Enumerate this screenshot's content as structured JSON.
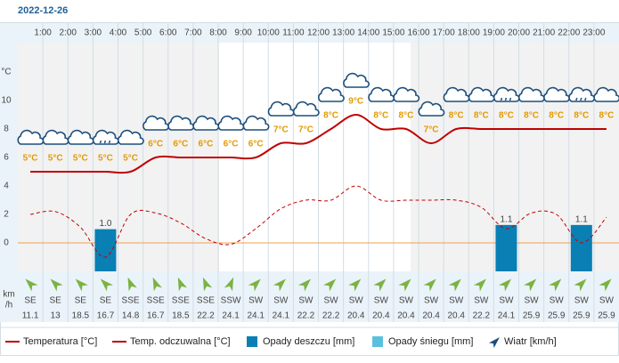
{
  "chart_data": {
    "type": "weather",
    "date": "2022-12-26",
    "hour_labels": [
      "1:00",
      "2:00",
      "3:00",
      "4:00",
      "5:00",
      "6:00",
      "7:00",
      "8:00",
      "9:00",
      "10:00",
      "11:00",
      "12:00",
      "13:00",
      "14:00",
      "15:00",
      "16:00",
      "17:00",
      "18:00",
      "19:00",
      "20:00",
      "21:00",
      "22:00",
      "23:00"
    ],
    "ylabel": "°C",
    "ylim": [
      -2,
      14
    ],
    "yticks": [
      0,
      2,
      4,
      6,
      8,
      10
    ],
    "y2lim": [
      0,
      5.4
    ],
    "series": [
      {
        "name": "Temperatura [°C]",
        "color": "#c00000",
        "values": [
          5,
          5,
          5,
          5,
          5,
          6,
          6,
          6,
          6,
          6,
          7,
          7,
          8,
          9,
          8,
          8,
          7,
          8,
          8,
          8,
          8,
          8,
          8,
          8
        ],
        "value_labels": [
          "5°C",
          "5°C",
          "5°C",
          "5°C",
          "5°C",
          "6°C",
          "6°C",
          "6°C",
          "6°C",
          "6°C",
          "7°C",
          "7°C",
          "8°C",
          "9°C",
          "8°C",
          "8°C",
          "7°C",
          "8°C",
          "8°C",
          "8°C",
          "8°C",
          "8°C",
          "8°C",
          "8°C"
        ]
      },
      {
        "name": "Temp. odczuwalna [°C]",
        "color": "#c00000",
        "dashed": true,
        "values": [
          2,
          2.2,
          1.1,
          -1,
          2,
          2.1,
          1.4,
          0.3,
          -0.1,
          1,
          2.4,
          3,
          3,
          4,
          3,
          3,
          3,
          3,
          2.5,
          1,
          2.1,
          2,
          0,
          1.8
        ]
      },
      {
        "name": "Opady deszczu [mm]",
        "color": "#0a7fb4",
        "axis": "y2",
        "values": [
          0,
          0,
          0,
          1.0,
          0,
          0,
          0,
          0,
          0,
          0,
          0,
          0,
          0,
          0,
          0,
          0,
          0,
          0,
          0,
          1.1,
          0,
          0,
          1.1,
          0
        ],
        "value_labels": [
          null,
          null,
          null,
          "1.0",
          null,
          null,
          null,
          null,
          null,
          null,
          null,
          null,
          null,
          null,
          null,
          null,
          null,
          null,
          null,
          "1.1",
          null,
          null,
          "1.1",
          null
        ]
      },
      {
        "name": "Opady śniegu [mm]",
        "color": "#5bc0de",
        "axis": "y2",
        "values": [
          0,
          0,
          0,
          0,
          0,
          0,
          0,
          0,
          0,
          0,
          0,
          0,
          0,
          0,
          0,
          0,
          0,
          0,
          0,
          0,
          0,
          0,
          0,
          0
        ]
      }
    ],
    "wind": {
      "name": "Wiatr [km/h]",
      "unit_label": [
        "km",
        "/h"
      ],
      "directions": [
        "SE",
        "SE",
        "SE",
        "SE",
        "SSE",
        "SSE",
        "SSE",
        "SSE",
        "SSW",
        "SW",
        "SW",
        "SW",
        "SW",
        "SW",
        "SW",
        "SW",
        "SW",
        "SW",
        "SW",
        "SW",
        "SW",
        "SW",
        "SW",
        "SW"
      ],
      "speeds": [
        11.1,
        13,
        18.5,
        16.7,
        14.8,
        16.7,
        18.5,
        22.2,
        24.1,
        24.1,
        24.1,
        22.2,
        22.2,
        20.4,
        20.4,
        20.4,
        20.4,
        20.4,
        22.2,
        24.1,
        25.9,
        25.9,
        25.9,
        25.9
      ]
    }
  }
}
